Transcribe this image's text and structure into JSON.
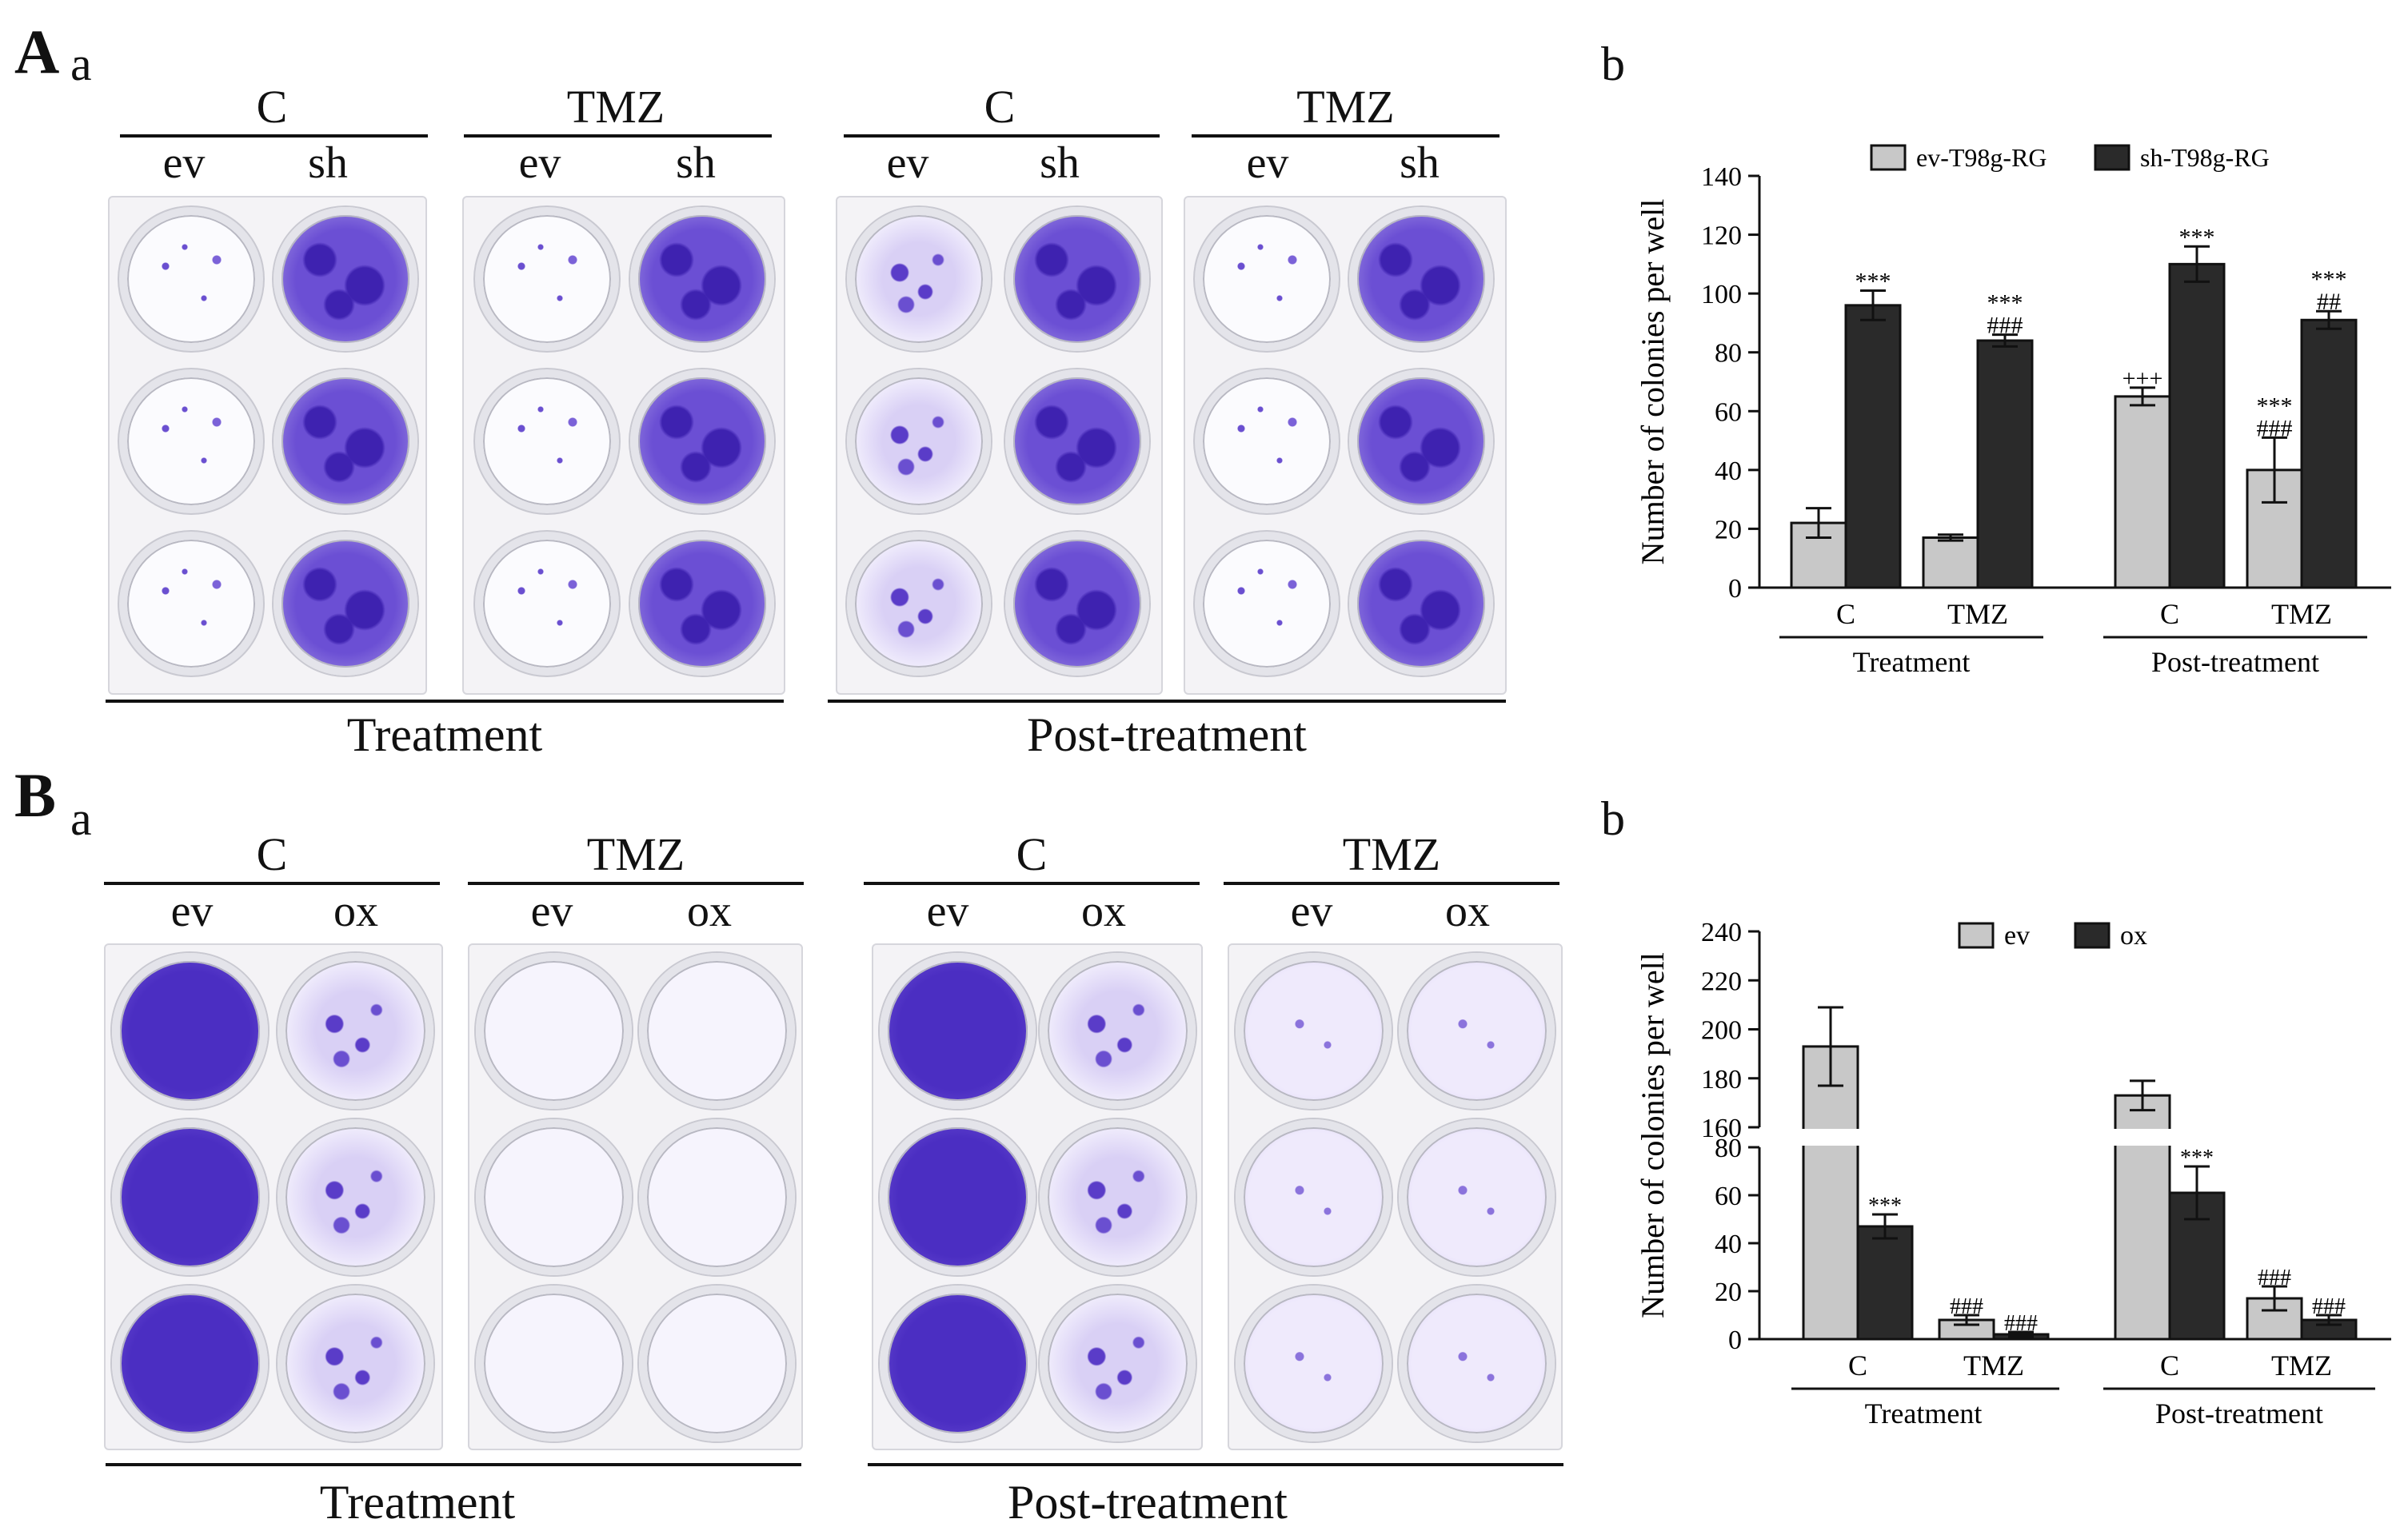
{
  "figure": {
    "panelA": {
      "letter": "A",
      "sub_a": "a",
      "sub_b": "b",
      "left": {
        "groups": [
          {
            "label": "C",
            "cols": [
              "ev",
              "sh"
            ]
          },
          {
            "label": "TMZ",
            "cols": [
              "ev",
              "sh"
            ]
          }
        ],
        "footer": "Treatment"
      },
      "right": {
        "groups": [
          {
            "label": "C",
            "cols": [
              "ev",
              "sh"
            ]
          },
          {
            "label": "TMZ",
            "cols": [
              "ev",
              "sh"
            ]
          }
        ],
        "footer": "Post-treatment"
      }
    },
    "panelB": {
      "letter": "B",
      "sub_a": "a",
      "sub_b": "b",
      "left": {
        "groups": [
          {
            "label": "C",
            "cols": [
              "ev",
              "ox"
            ]
          },
          {
            "label": "TMZ",
            "cols": [
              "ev",
              "ox"
            ]
          }
        ],
        "footer": "Treatment"
      },
      "right": {
        "groups": [
          {
            "label": "C",
            "cols": [
              "ev",
              "ox"
            ]
          },
          {
            "label": "TMZ",
            "cols": [
              "ev",
              "ox"
            ]
          }
        ],
        "footer": "Post-treatment"
      }
    }
  },
  "chart_data": [
    {
      "type": "bar",
      "title": "",
      "ylabel": "Number of colonies per well",
      "ylim": [
        0,
        140
      ],
      "yticks": [
        0,
        20,
        40,
        60,
        80,
        100,
        120,
        140
      ],
      "categories": [
        "C",
        "TMZ",
        "C",
        "TMZ"
      ],
      "groups": [
        "Treatment",
        "Post-treatment"
      ],
      "series": [
        {
          "name": "ev-T98g-RG",
          "color": "#c8c8c8",
          "values": [
            22,
            17,
            65,
            40
          ],
          "errors": [
            5,
            1,
            3,
            11
          ]
        },
        {
          "name": "sh-T98g-RG",
          "color": "#2a2a2a",
          "values": [
            96,
            84,
            110,
            91
          ],
          "errors": [
            5,
            2,
            6,
            3
          ]
        }
      ],
      "annotations": [
        {
          "series": 1,
          "index": 0,
          "lines": [
            "***"
          ]
        },
        {
          "series": 1,
          "index": 1,
          "lines": [
            "***",
            "###"
          ]
        },
        {
          "series": 0,
          "index": 2,
          "lines": [
            "+++"
          ]
        },
        {
          "series": 1,
          "index": 2,
          "lines": [
            "***"
          ]
        },
        {
          "series": 0,
          "index": 3,
          "lines": [
            "***",
            "###"
          ]
        },
        {
          "series": 1,
          "index": 3,
          "lines": [
            "***",
            "##"
          ]
        }
      ]
    },
    {
      "type": "bar",
      "title": "",
      "ylabel": "Number of colonies per well",
      "axis_break": {
        "lower": [
          0,
          80
        ],
        "upper": [
          160,
          240
        ]
      },
      "yticks_lower": [
        0,
        20,
        40,
        60,
        80
      ],
      "yticks_upper": [
        160,
        180,
        200,
        220,
        240
      ],
      "categories": [
        "C",
        "TMZ",
        "C",
        "TMZ"
      ],
      "groups": [
        "Treatment",
        "Post-treatment"
      ],
      "series": [
        {
          "name": "ev",
          "color": "#c8c8c8",
          "values": [
            193,
            8,
            173,
            17
          ],
          "errors": [
            16,
            2,
            6,
            5
          ]
        },
        {
          "name": "ox",
          "color": "#2a2a2a",
          "values": [
            47,
            2,
            61,
            8
          ],
          "errors": [
            5,
            1,
            11,
            2
          ]
        }
      ],
      "annotations": [
        {
          "series": 1,
          "index": 0,
          "lines": [
            "***"
          ]
        },
        {
          "series": 0,
          "index": 1,
          "lines": [
            "###"
          ]
        },
        {
          "series": 1,
          "index": 1,
          "lines": [
            "###"
          ]
        },
        {
          "series": 1,
          "index": 2,
          "lines": [
            "***"
          ]
        },
        {
          "series": 0,
          "index": 3,
          "lines": [
            "###"
          ]
        },
        {
          "series": 1,
          "index": 3,
          "lines": [
            "###"
          ]
        }
      ]
    }
  ]
}
